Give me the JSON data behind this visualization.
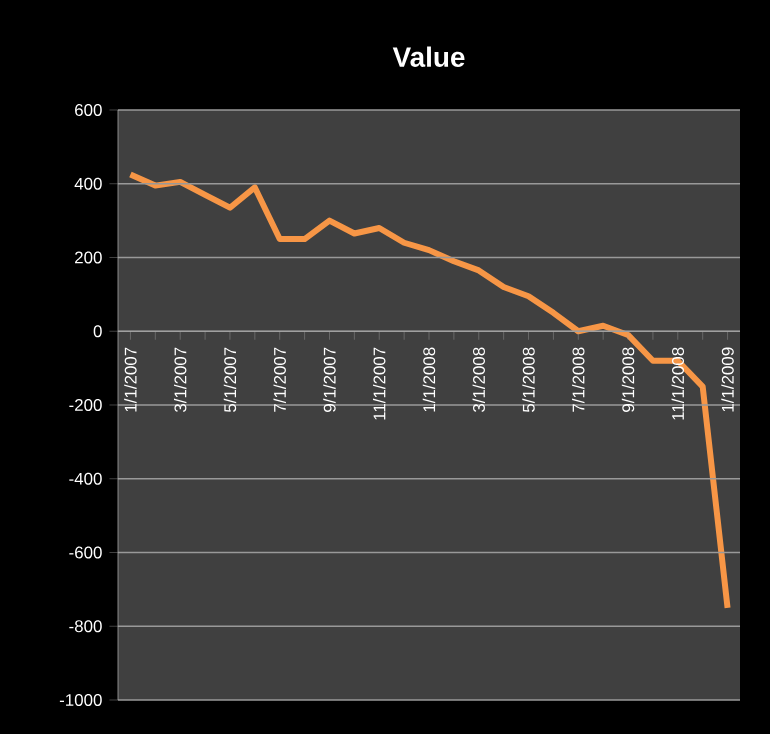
{
  "chart_data": {
    "type": "line",
    "title": "Value",
    "categories": [
      "1/1/2007",
      null,
      "3/1/2007",
      null,
      "5/1/2007",
      null,
      "7/1/2007",
      null,
      "9/1/2007",
      null,
      "11/1/2007",
      null,
      "1/1/2008",
      null,
      "3/1/2008",
      null,
      "5/1/2008",
      null,
      "7/1/2008",
      null,
      "9/1/2008",
      null,
      "11/1/2008",
      null,
      "1/1/2009"
    ],
    "series": [
      {
        "color": "#f79646",
        "values": [
          425,
          395,
          405,
          370,
          335,
          390,
          250,
          250,
          300,
          265,
          280,
          240,
          220,
          190,
          165,
          120,
          95,
          50,
          0,
          15,
          -10,
          -80,
          -80,
          -150,
          -750
        ]
      }
    ],
    "ylim": [
      -1000,
      600
    ],
    "yticks": [
      -1000,
      -800,
      -600,
      -400,
      -200,
      0,
      200,
      400,
      600
    ],
    "grid": "y",
    "legend": false,
    "marker": "none",
    "line_style": "solid"
  }
}
